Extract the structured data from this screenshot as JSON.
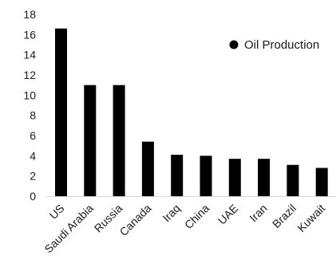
{
  "chart_data": {
    "type": "bar",
    "categories": [
      "US",
      "Saudi Arabia",
      "Russia",
      "Canada",
      "Iraq",
      "China",
      "UAE",
      "Iran",
      "Brazil",
      "Kuwait"
    ],
    "series": [
      {
        "name": "Oil Production",
        "values": [
          16.6,
          11.0,
          11.0,
          5.4,
          4.1,
          4.0,
          3.7,
          3.7,
          3.1,
          2.8
        ]
      }
    ],
    "ylim": [
      0,
      18
    ],
    "yticks": [
      0,
      2,
      4,
      6,
      8,
      10,
      12,
      14,
      16,
      18
    ],
    "grid": false,
    "legend_position": "top-right",
    "title": "",
    "xlabel": "",
    "ylabel": "",
    "colors": {
      "bar": "#000000",
      "text": "#1a1a1a",
      "axis": "#d9d9d9"
    }
  }
}
